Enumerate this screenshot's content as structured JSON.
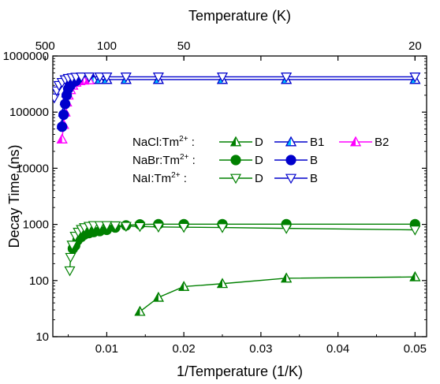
{
  "chart_data": {
    "type": "scatter",
    "xlabel": "1/Temperature (1/K)",
    "ylabel": "Decay Time (ns)",
    "x2label": "Temperature (K)",
    "xlim": [
      0.003,
      0.0515
    ],
    "ylim": [
      10,
      1000000
    ],
    "yscale": "log",
    "grid": false,
    "legend_position": "center-left",
    "x_ticks": [
      0.01,
      0.02,
      0.03,
      0.04,
      0.05
    ],
    "x_tick_labels": [
      "0.01",
      "0.02",
      "0.03",
      "0.04",
      "0.05"
    ],
    "y_ticks": [
      10,
      100,
      1000,
      10000,
      100000,
      1000000
    ],
    "y_tick_labels": [
      "10",
      "100",
      "1000",
      "10000",
      "100000",
      "1000000"
    ],
    "x2_ticks": [
      500,
      100,
      50,
      20
    ],
    "x2_tick_labels": [
      "500",
      "100",
      "50",
      "20"
    ],
    "legend_rows": [
      {
        "host": "NaCl:Tm",
        "sup": "2+",
        "suffix": " :",
        "entries": [
          "D",
          "B1",
          "B2"
        ]
      },
      {
        "host": "NaBr:Tm",
        "sup": "2+",
        "suffix": " :",
        "entries": [
          "D",
          "B"
        ]
      },
      {
        "host": "NaI:Tm",
        "sup": "2+",
        "suffix": " :",
        "entries": [
          "D",
          "B"
        ]
      }
    ],
    "series": [
      {
        "name": "D",
        "row": 0,
        "marker": "triangle-up",
        "fill": "half",
        "color": "#008000",
        "x": [
          0.0143,
          0.0167,
          0.02,
          0.025,
          0.0333,
          0.05
        ],
        "y": [
          28,
          50,
          78,
          88,
          110,
          116
        ]
      },
      {
        "name": "B1",
        "row": 0,
        "marker": "triangle-up",
        "fill": "half",
        "color": "#0000cc",
        "fill_color": "#00bfff",
        "x": [
          0.0042,
          0.0044,
          0.0046,
          0.0048,
          0.005,
          0.0053,
          0.0056,
          0.006,
          0.0065,
          0.007,
          0.0077,
          0.0083,
          0.0091,
          0.01,
          0.0125,
          0.0167,
          0.025,
          0.0333,
          0.05
        ],
        "y": [
          60000,
          100000,
          160000,
          220000,
          270000,
          310000,
          340000,
          360000,
          370000,
          375000,
          380000,
          380000,
          380000,
          380000,
          380000,
          380000,
          380000,
          380000,
          380000
        ]
      },
      {
        "name": "B2",
        "row": 0,
        "marker": "triangle-up",
        "fill": "half",
        "color": "#ff00ff",
        "fill_color": "#ff00ff",
        "x": [
          0.0042,
          0.0044,
          0.0046,
          0.0048,
          0.005,
          0.0053,
          0.0056,
          0.006,
          0.0065,
          0.007,
          0.0077
        ],
        "y": [
          33000,
          60000,
          100000,
          150000,
          200000,
          250000,
          300000,
          340000,
          360000,
          370000,
          375000
        ]
      },
      {
        "name": "D",
        "row": 1,
        "marker": "circle",
        "fill": "filled",
        "color": "#008000",
        "x": [
          0.0056,
          0.0059,
          0.0062,
          0.0067,
          0.0071,
          0.0077,
          0.0083,
          0.0091,
          0.01,
          0.0111,
          0.0125,
          0.0143,
          0.0167,
          0.02,
          0.025,
          0.0333,
          0.05
        ],
        "y": [
          370,
          420,
          520,
          600,
          660,
          700,
          730,
          760,
          800,
          880,
          960,
          1000,
          1010,
          1010,
          1010,
          1010,
          1010
        ]
      },
      {
        "name": "B",
        "row": 1,
        "marker": "circle",
        "fill": "filled",
        "color": "#0000cc",
        "x": [
          0.0042,
          0.0044,
          0.0046,
          0.0048,
          0.005,
          0.0053,
          0.0056,
          0.006
        ],
        "y": [
          55000,
          90000,
          140000,
          200000,
          260000,
          300000,
          340000,
          360000
        ],
        "hidden_in_plot": false
      },
      {
        "name": "D",
        "row": 2,
        "marker": "triangle-down",
        "fill": "open",
        "color": "#008000",
        "x": [
          0.0052,
          0.0053,
          0.0055,
          0.0059,
          0.0063,
          0.0067,
          0.0071,
          0.0077,
          0.0083,
          0.0091,
          0.01,
          0.0111,
          0.0125,
          0.0143,
          0.0167,
          0.02,
          0.025,
          0.0333,
          0.05
        ],
        "y": [
          150,
          260,
          430,
          620,
          730,
          820,
          880,
          930,
          960,
          960,
          960,
          950,
          930,
          920,
          900,
          890,
          880,
          850,
          800
        ]
      },
      {
        "name": "B",
        "row": 2,
        "marker": "triangle-down",
        "fill": "open",
        "color": "#0000cc",
        "x": [
          0.0032,
          0.0035,
          0.0038,
          0.0042,
          0.0046,
          0.005,
          0.0055,
          0.006,
          0.0067,
          0.0077,
          0.0091,
          0.01,
          0.0125,
          0.0167,
          0.025,
          0.0333,
          0.05
        ],
        "y": [
          180000,
          240000,
          300000,
          340000,
          380000,
          400000,
          410000,
          420000,
          425000,
          425000,
          425000,
          425000,
          425000,
          425000,
          425000,
          425000,
          425000
        ]
      }
    ]
  }
}
